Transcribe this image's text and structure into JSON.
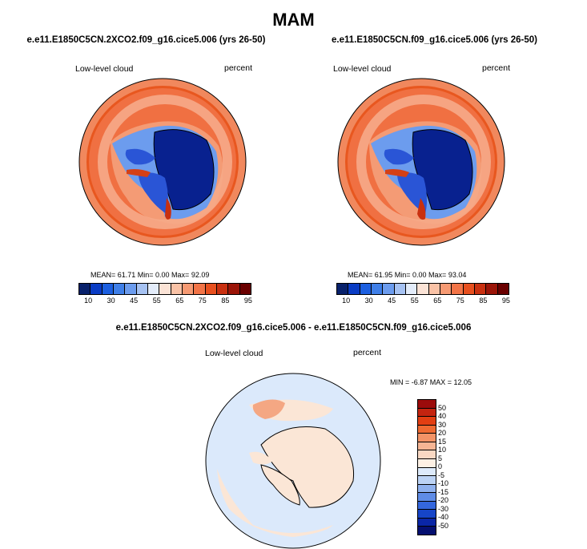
{
  "title": "MAM",
  "panels": [
    {
      "case": "e.e11.E1850C5CN.2XCO2.f09_g16.cice5.006 (yrs 26-50)",
      "variable": "Low-level cloud",
      "units": "percent",
      "stats": "MEAN= 61.71  Min=  0.00  Max=  92.09"
    },
    {
      "case": "e.e11.E1850C5CN.f09_g16.cice5.006 (yrs 26-50)",
      "variable": "Low-level cloud",
      "units": "percent",
      "stats": "MEAN= 61.95  Min=  0.00  Max=  93.04"
    }
  ],
  "diff": {
    "case": "e.e11.E1850C5CN.2XCO2.f09_g16.cice5.006 - e.e11.E1850C5CN.f09_g16.cice5.006",
    "variable": "Low-level cloud",
    "units": "percent",
    "stats": "MIN =  -6.87 MAX =  12.05"
  },
  "colorbar_abs": {
    "colors": [
      "#08216b",
      "#0a3cc4",
      "#1c5fe0",
      "#3f7fe8",
      "#6c9cee",
      "#a6c2f2",
      "#e3ecfa",
      "#fbe3d6",
      "#f9c2a6",
      "#f69a73",
      "#f27447",
      "#e8501f",
      "#c93010",
      "#9b1508",
      "#6a0000"
    ],
    "ticks": [
      "10",
      "30",
      "45",
      "55",
      "65",
      "75",
      "85",
      "95"
    ]
  },
  "colorbar_diff": {
    "colors": [
      "#9b0b0b",
      "#c42410",
      "#e23e12",
      "#ef6a32",
      "#f39366",
      "#f6b594",
      "#f9d8c3",
      "#fdf0e4",
      "#ddeafb",
      "#bcd3f5",
      "#8fb1ee",
      "#5f8ce6",
      "#3467de",
      "#1645c8",
      "#0a26a6",
      "#050f70"
    ],
    "ticks": [
      "50",
      "40",
      "30",
      "20",
      "15",
      "10",
      "5",
      "0",
      "-5",
      "-10",
      "-15",
      "-20",
      "-30",
      "-40",
      "-50"
    ]
  },
  "map_colors": {
    "ocean_high": "#e8571f",
    "ocean_mid": "#f17a4a",
    "ring_light": "#f7b292",
    "antarctica_low": "#08218f",
    "antarctica_edge": "#2a55d6",
    "coast_light": "#9fc0f0",
    "diff_background": "#dbe9fb",
    "diff_land": "#fbe6d6",
    "diff_warm": "#f4a783"
  }
}
